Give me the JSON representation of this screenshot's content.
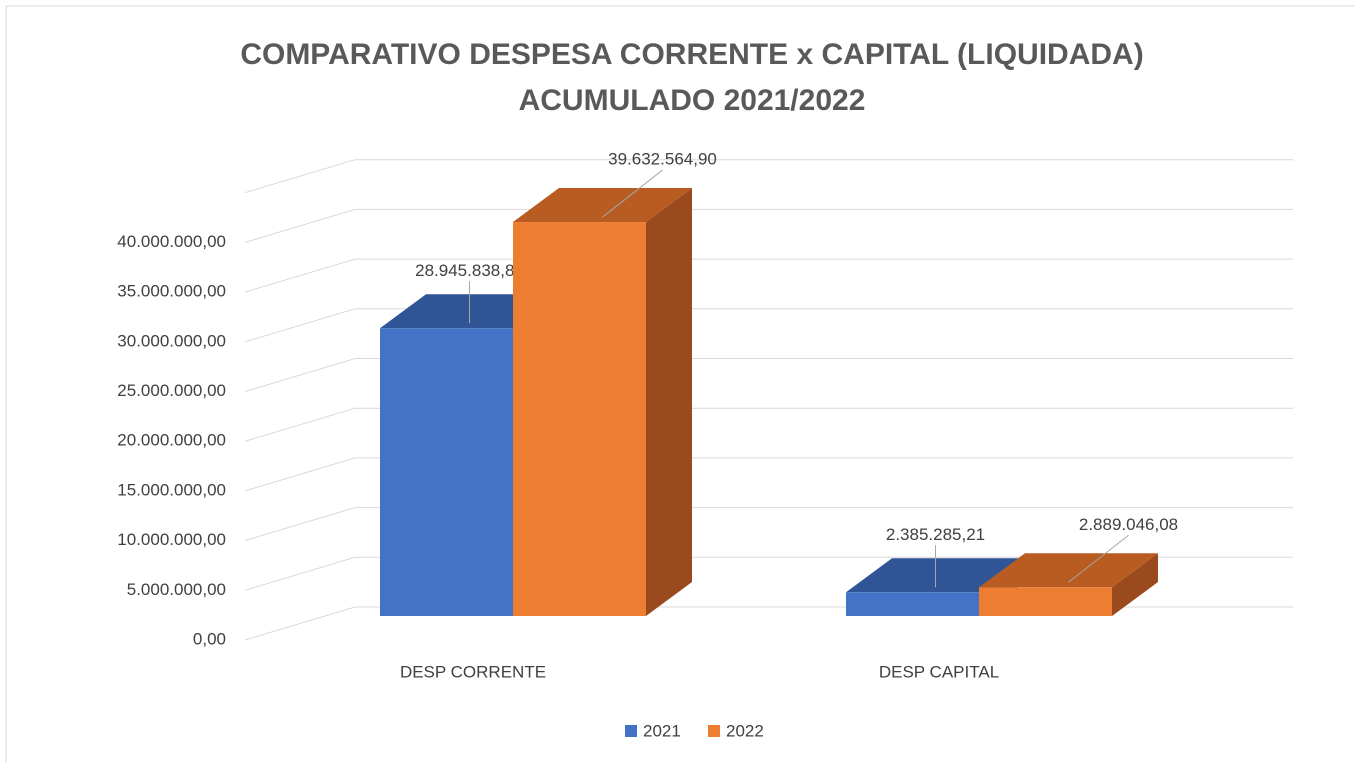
{
  "chart_data": {
    "type": "bar3d",
    "title": "COMPARATIVO DESPESA CORRENTE x CAPITAL (LIQUIDADA)",
    "subtitle": "ACUMULADO 2021/2022",
    "categories": [
      "DESP CORRENTE",
      "DESP CAPITAL"
    ],
    "series": [
      {
        "name": "2021",
        "color": "#4472c4",
        "top_color": "#2f5597",
        "side_color": "#2f528f",
        "values": [
          28945838.85,
          2385285.21
        ],
        "value_labels": [
          "28.945.838,85",
          "2.385.285,21"
        ]
      },
      {
        "name": "2022",
        "color": "#ed7d31",
        "top_color": "#b85c22",
        "side_color": "#9a4a1c",
        "values": [
          39632564.9,
          2889046.08
        ],
        "value_labels": [
          "39.632.564,90",
          "2.889.046,08"
        ]
      }
    ],
    "ylim": [
      0,
      45000000
    ],
    "yticks": [
      {
        "value": 0,
        "label": "0,00"
      },
      {
        "value": 5000000,
        "label": "5.000.000,00"
      },
      {
        "value": 10000000,
        "label": "10.000.000,00"
      },
      {
        "value": 15000000,
        "label": "15.000.000,00"
      },
      {
        "value": 20000000,
        "label": "20.000.000,00"
      },
      {
        "value": 25000000,
        "label": "25.000.000,00"
      },
      {
        "value": 30000000,
        "label": "30.000.000,00"
      },
      {
        "value": 35000000,
        "label": "35.000.000,00"
      },
      {
        "value": 40000000,
        "label": "40.000.000,00"
      }
    ],
    "grid": true,
    "legend": "bottom"
  }
}
